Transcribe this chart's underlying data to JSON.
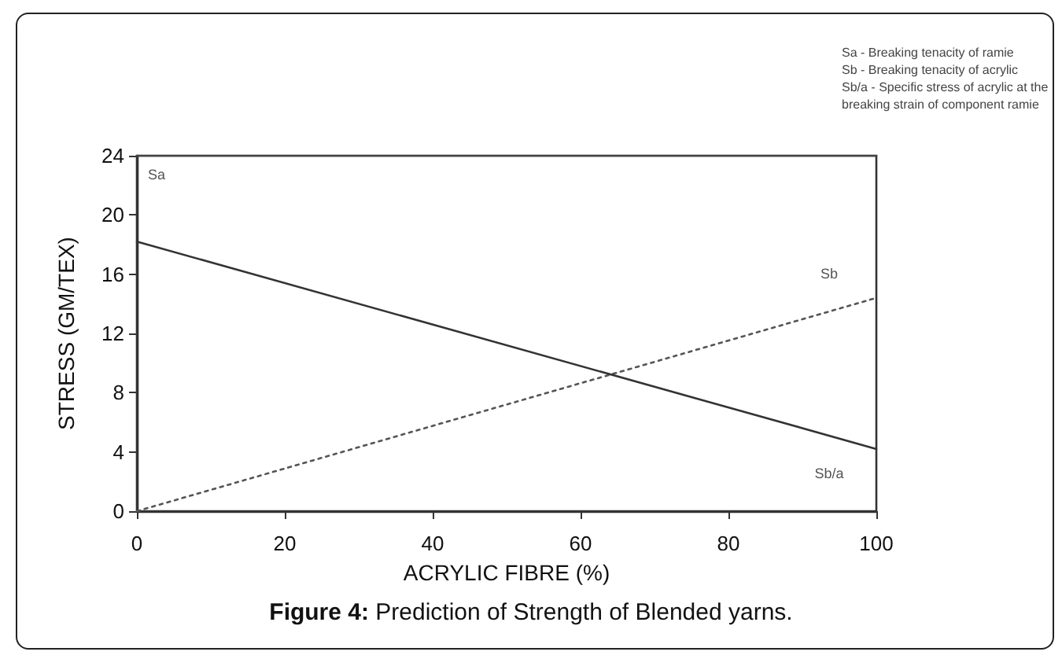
{
  "chart_data": {
    "type": "line",
    "title": "Figure 4: Prediction of Strength of Blended yarns.",
    "xlabel": "ACRYLIC FIBRE (%)",
    "ylabel": "STRESS (GM/TEX)",
    "x": [
      0,
      100
    ],
    "series": [
      {
        "name": "Sa",
        "color": "#444444",
        "values": [
          24,
          24
        ],
        "line_style": "solid"
      },
      {
        "name": "Sb",
        "color": "#555555",
        "values": [
          0,
          14.4
        ],
        "line_style": "dotted"
      },
      {
        "name": "Sb/a",
        "color": "#333333",
        "values": [
          18.2,
          4.2
        ],
        "line_style": "solid"
      }
    ],
    "xlim": [
      0,
      100
    ],
    "xticks": [
      0,
      20,
      40,
      60,
      80,
      100
    ],
    "ylim": [
      0,
      24
    ],
    "yticks": [
      0,
      4,
      8,
      12,
      16,
      20,
      24
    ],
    "grid": false,
    "legend": false,
    "marker": "none",
    "annotations": [
      "Sa    - Breaking tenacity of ramie",
      "Sb    - Breaking tenacity of acrylic",
      "Sb/a - Specific stress of acrylic at the breaking strain of component ramie"
    ]
  }
}
